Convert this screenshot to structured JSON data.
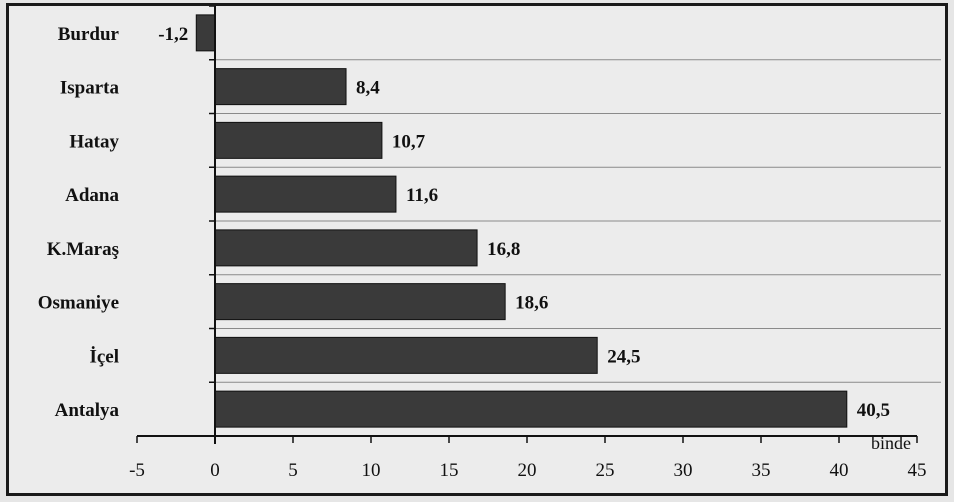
{
  "chart_data": {
    "type": "bar",
    "orientation": "horizontal",
    "categories": [
      "Burdur",
      "Isparta",
      "Hatay",
      "Adana",
      "K.Maraş",
      "Osmaniye",
      "İçel",
      "Antalya"
    ],
    "values": [
      -1.2,
      8.4,
      10.7,
      11.6,
      16.8,
      18.6,
      24.5,
      40.5
    ],
    "value_labels": [
      "-1,2",
      "8,4",
      "10,7",
      "11,6",
      "16,8",
      "18,6",
      "24,5",
      "40,5"
    ],
    "xlim": [
      -5,
      45
    ],
    "x_ticks": [
      -5,
      0,
      5,
      10,
      15,
      20,
      25,
      30,
      35,
      40,
      45
    ],
    "x_tick_labels": [
      "-5",
      "0",
      "5",
      "10",
      "15",
      "20",
      "25",
      "30",
      "35",
      "40",
      "45"
    ],
    "unit_label": "binde",
    "grid": true,
    "bar_color": "#3a3a3a",
    "title": "",
    "xlabel": "",
    "ylabel": ""
  }
}
